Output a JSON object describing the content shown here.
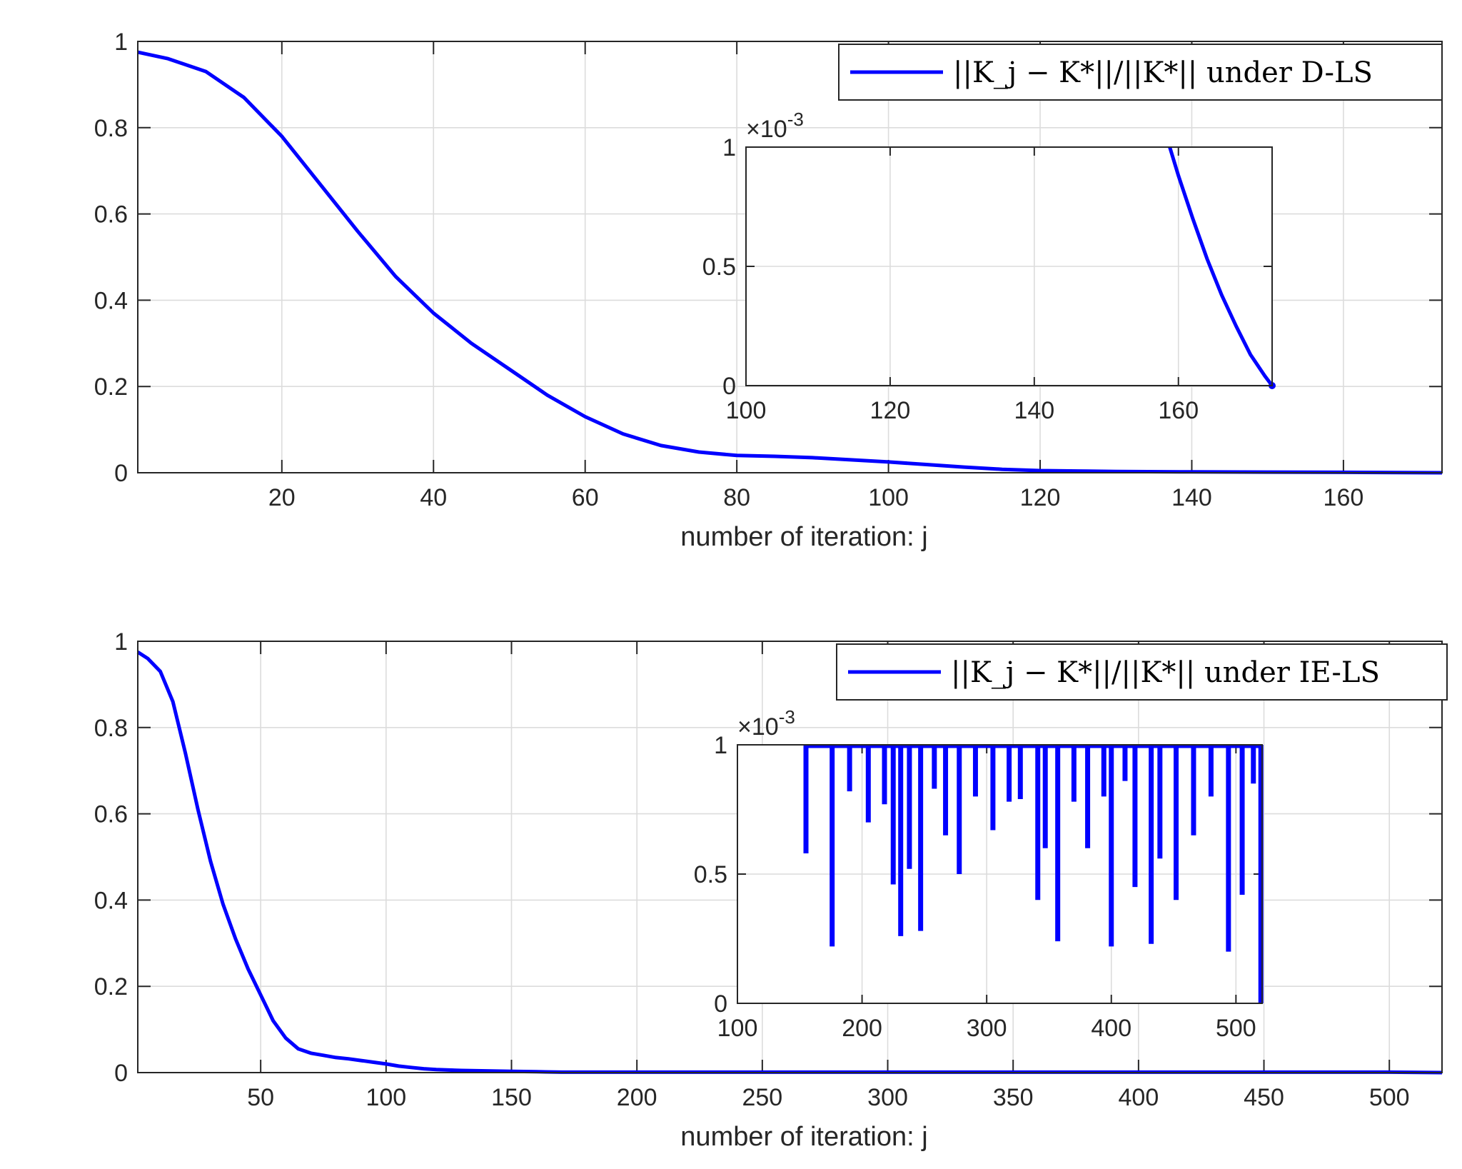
{
  "chart_data": [
    {
      "type": "line",
      "panel": "top",
      "xlabel": "number of iteration: j",
      "ylabel": "",
      "xlim": [
        1,
        173
      ],
      "ylim": [
        0,
        1
      ],
      "xticks": [
        20,
        40,
        60,
        80,
        100,
        120,
        140,
        160
      ],
      "yticks": [
        0,
        0.2,
        0.4,
        0.6,
        0.8,
        1
      ],
      "grid": true,
      "legend": {
        "position": "top-right",
        "entries": [
          "||K_j − K*||/||K*|| under D-LS"
        ]
      },
      "series": [
        {
          "name": "||K_j − K*||/||K*|| under D-LS",
          "color": "#0000ff",
          "x": [
            1,
            5,
            10,
            15,
            20,
            25,
            30,
            35,
            40,
            45,
            50,
            55,
            60,
            65,
            70,
            75,
            80,
            85,
            90,
            95,
            100,
            105,
            110,
            115,
            120,
            125,
            130,
            140,
            150,
            160,
            173
          ],
          "y": [
            0.975,
            0.96,
            0.93,
            0.87,
            0.78,
            0.67,
            0.56,
            0.455,
            0.37,
            0.3,
            0.24,
            0.18,
            0.13,
            0.09,
            0.063,
            0.048,
            0.04,
            0.038,
            0.035,
            0.03,
            0.025,
            0.019,
            0.013,
            0.008,
            0.005,
            0.004,
            0.003,
            0.002,
            0.0015,
            0.001,
            0.0
          ]
        }
      ],
      "inset": {
        "xlim": [
          100,
          173
        ],
        "ylim": [
          0,
          1
        ],
        "xticks": [
          100,
          120,
          140,
          160
        ],
        "yticks": [
          0,
          0.5,
          1
        ],
        "yscale_label": "×10",
        "yscale_exponent": "-3",
        "series": [
          {
            "name": "||K_j − K*||/||K*|| under D-LS",
            "x": [
              158.8,
              160,
              162,
              164,
              166,
              168,
              170,
              172,
              173
            ],
            "y": [
              1.0,
              0.88,
              0.7,
              0.53,
              0.38,
              0.25,
              0.13,
              0.04,
              0.0
            ]
          }
        ]
      }
    },
    {
      "type": "line",
      "panel": "bottom",
      "xlabel": "number of iteration: j",
      "ylabel": "",
      "xlim": [
        1,
        521
      ],
      "ylim": [
        0,
        1
      ],
      "xticks": [
        50,
        100,
        150,
        200,
        250,
        300,
        350,
        400,
        450,
        500
      ],
      "yticks": [
        0,
        0.2,
        0.4,
        0.6,
        0.8,
        1
      ],
      "grid": true,
      "legend": {
        "position": "top-right",
        "entries": [
          "||K_j − K*||/||K*|| under IE-LS"
        ]
      },
      "series": [
        {
          "name": "||K_j − K*||/||K*|| under IE-LS",
          "color": "#0000ff",
          "x": [
            1,
            5,
            10,
            15,
            20,
            25,
            30,
            35,
            40,
            45,
            50,
            55,
            60,
            65,
            70,
            75,
            80,
            85,
            90,
            95,
            100,
            105,
            110,
            115,
            120,
            125,
            130,
            140,
            150,
            160,
            170,
            200,
            250,
            300,
            350,
            400,
            450,
            500,
            521
          ],
          "y": [
            0.975,
            0.96,
            0.93,
            0.86,
            0.74,
            0.61,
            0.49,
            0.39,
            0.31,
            0.24,
            0.18,
            0.12,
            0.08,
            0.055,
            0.045,
            0.04,
            0.035,
            0.032,
            0.028,
            0.024,
            0.02,
            0.015,
            0.012,
            0.009,
            0.007,
            0.006,
            0.005,
            0.004,
            0.003,
            0.002,
            0.001,
            0.001,
            0.001,
            0.001,
            0.001,
            0.001,
            0.001,
            0.001,
            0.0
          ]
        }
      ],
      "inset": {
        "xlim": [
          100,
          521
        ],
        "ylim": [
          0,
          1
        ],
        "xticks": [
          100,
          200,
          300,
          400,
          500
        ],
        "yticks": [
          0,
          0.5,
          1
        ],
        "yscale_label": "×10",
        "yscale_exponent": "-3",
        "spikes": {
          "x": [
            155,
            176,
            190,
            205,
            218,
            225,
            231,
            238,
            247,
            258,
            267,
            278,
            291,
            305,
            318,
            327,
            341,
            347,
            357,
            370,
            381,
            394,
            400,
            411,
            419,
            432,
            439,
            452,
            466,
            480,
            494,
            505,
            514,
            520
          ],
          "y": [
            0.58,
            0.22,
            0.82,
            0.7,
            0.77,
            0.46,
            0.26,
            0.52,
            0.28,
            0.83,
            0.65,
            0.5,
            0.8,
            0.67,
            0.78,
            0.79,
            0.4,
            0.6,
            0.24,
            0.78,
            0.6,
            0.8,
            0.22,
            0.86,
            0.45,
            0.23,
            0.56,
            0.4,
            0.65,
            0.8,
            0.2,
            0.42,
            0.85,
            0.0
          ]
        }
      }
    }
  ]
}
